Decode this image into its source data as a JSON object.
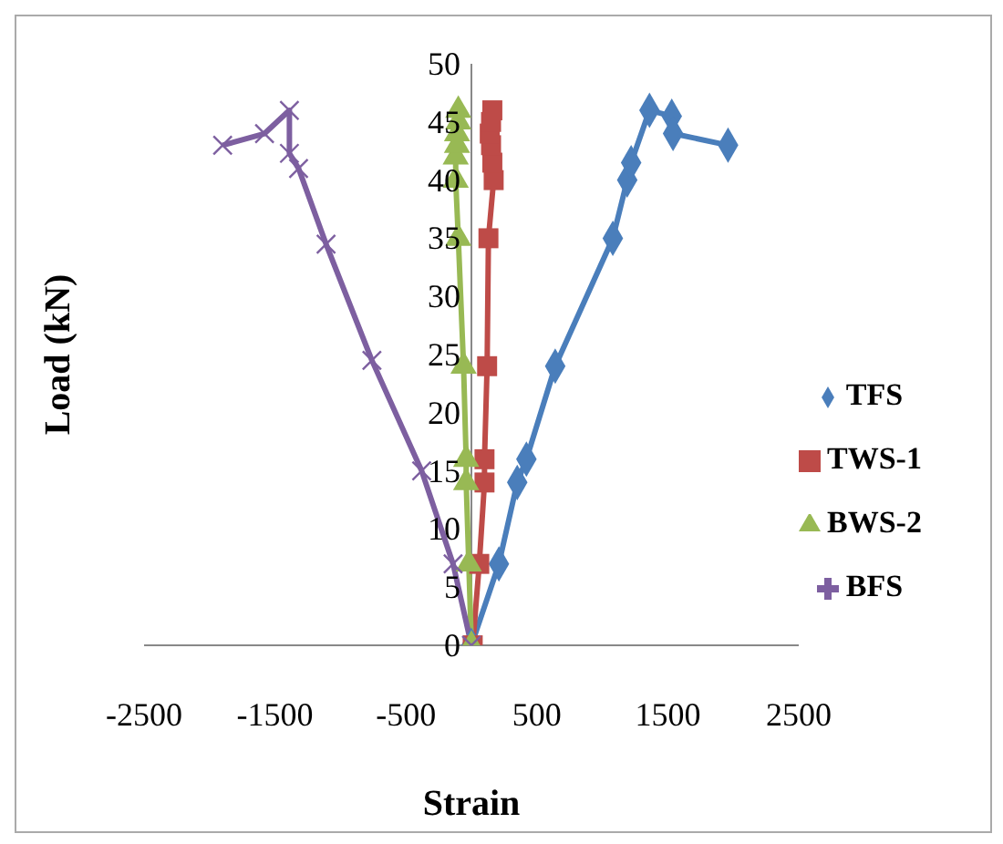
{
  "chart_data": {
    "type": "line",
    "xlabel": "Strain",
    "ylabel": "Load (kN)",
    "xlim": [
      -2500,
      2500
    ],
    "xticks": [
      -2500,
      -1500,
      -500,
      500,
      1500,
      2500
    ],
    "ylim": [
      0,
      50
    ],
    "yticks": [
      0,
      5,
      10,
      15,
      20,
      25,
      30,
      35,
      40,
      45,
      50
    ],
    "grid": false,
    "legend": "right",
    "series": [
      {
        "name": "TFS",
        "color": "#4a7ebb",
        "marker": "diamond",
        "x": [
          0,
          210,
          350,
          420,
          640,
          1080,
          1190,
          1220,
          1360,
          1530,
          1540,
          1960
        ],
        "values": [
          0,
          7,
          14,
          16,
          24,
          35,
          40,
          41.5,
          46,
          45.5,
          44,
          43
        ]
      },
      {
        "name": "TWS-1",
        "color": "#be4b48",
        "marker": "square",
        "x": [
          10,
          60,
          100,
          100,
          120,
          130,
          170,
          160,
          150,
          140,
          150,
          160
        ],
        "values": [
          0,
          7,
          14,
          16,
          24,
          35,
          40,
          41.5,
          43,
          44,
          45,
          46
        ]
      },
      {
        "name": "BWS-2",
        "color": "#98b954",
        "marker": "triangle",
        "x": [
          0,
          -20,
          -40,
          -40,
          -60,
          -100,
          -120,
          -120,
          -110,
          -110,
          -100,
          -100
        ],
        "values": [
          0,
          7,
          14,
          16,
          24,
          35,
          40,
          42,
          43,
          44,
          45,
          46
        ]
      },
      {
        "name": "BFS",
        "color": "#7d5fa0",
        "marker": "cross",
        "x": [
          0,
          -140,
          -380,
          -760,
          -1110,
          -1320,
          -1390,
          -1390,
          -1580,
          -1900
        ],
        "values": [
          0,
          7,
          15,
          24.5,
          34.5,
          41,
          42.3,
          46,
          44,
          43
        ]
      }
    ]
  }
}
